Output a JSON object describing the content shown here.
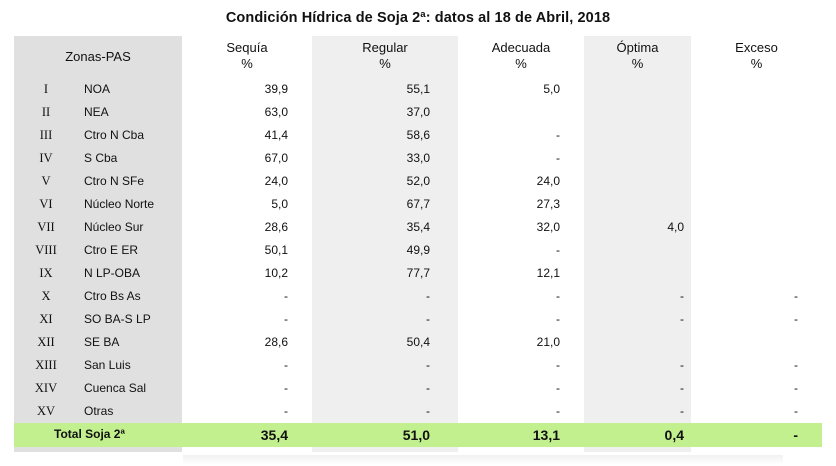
{
  "title": "Condición Hídrica de Soja 2ª: datos al 18 de Abril, 2018",
  "colors": {
    "zonas_column_bg": "#e0e0e0",
    "alt_column_bg": "#efefef",
    "total_row_bg": "#c3f08f"
  },
  "headers": {
    "zonas": "Zonas-PAS",
    "sequia": "Sequía",
    "regular": "Regular",
    "adecuada": "Adecuada",
    "optima": "Óptima",
    "exceso": "Exceso",
    "unit": "%"
  },
  "rows": [
    {
      "roman": "I",
      "zona": "NOA",
      "sequia": "39,9",
      "regular": "55,1",
      "adecuada": "5,0",
      "optima": "",
      "exceso": ""
    },
    {
      "roman": "II",
      "zona": "NEA",
      "sequia": "63,0",
      "regular": "37,0",
      "adecuada": "",
      "optima": "",
      "exceso": ""
    },
    {
      "roman": "III",
      "zona": "Ctro N Cba",
      "sequia": "41,4",
      "regular": "58,6",
      "adecuada": "-",
      "optima": "",
      "exceso": ""
    },
    {
      "roman": "IV",
      "zona": "S Cba",
      "sequia": "67,0",
      "regular": "33,0",
      "adecuada": "-",
      "optima": "",
      "exceso": ""
    },
    {
      "roman": "V",
      "zona": "Ctro N SFe",
      "sequia": "24,0",
      "regular": "52,0",
      "adecuada": "24,0",
      "optima": "",
      "exceso": ""
    },
    {
      "roman": "VI",
      "zona": "Núcleo Norte",
      "sequia": "5,0",
      "regular": "67,7",
      "adecuada": "27,3",
      "optima": "",
      "exceso": ""
    },
    {
      "roman": "VII",
      "zona": "Núcleo Sur",
      "sequia": "28,6",
      "regular": "35,4",
      "adecuada": "32,0",
      "optima": "4,0",
      "exceso": ""
    },
    {
      "roman": "VIII",
      "zona": "Ctro E ER",
      "sequia": "50,1",
      "regular": "49,9",
      "adecuada": "-",
      "optima": "",
      "exceso": ""
    },
    {
      "roman": "IX",
      "zona": "N LP-OBA",
      "sequia": "10,2",
      "regular": "77,7",
      "adecuada": "12,1",
      "optima": "",
      "exceso": ""
    },
    {
      "roman": "X",
      "zona": "Ctro Bs As",
      "sequia": "-",
      "regular": "-",
      "adecuada": "-",
      "optima": "-",
      "exceso": "-"
    },
    {
      "roman": "XI",
      "zona": "SO BA-S LP",
      "sequia": "-",
      "regular": "-",
      "adecuada": "-",
      "optima": "-",
      "exceso": "-"
    },
    {
      "roman": "XII",
      "zona": "SE BA",
      "sequia": "28,6",
      "regular": "50,4",
      "adecuada": "21,0",
      "optima": "",
      "exceso": ""
    },
    {
      "roman": "XIII",
      "zona": "San Luis",
      "sequia": "-",
      "regular": "-",
      "adecuada": "-",
      "optima": "-",
      "exceso": "-"
    },
    {
      "roman": "XIV",
      "zona": "Cuenca Sal",
      "sequia": "-",
      "regular": "-",
      "adecuada": "-",
      "optima": "-",
      "exceso": "-"
    },
    {
      "roman": "XV",
      "zona": "Otras",
      "sequia": "-",
      "regular": "-",
      "adecuada": "-",
      "optima": "-",
      "exceso": "-"
    }
  ],
  "total": {
    "label": "Total Soja 2ª",
    "sequia": "35,4",
    "regular": "51,0",
    "adecuada": "13,1",
    "optima": "0,4",
    "exceso": "-"
  }
}
